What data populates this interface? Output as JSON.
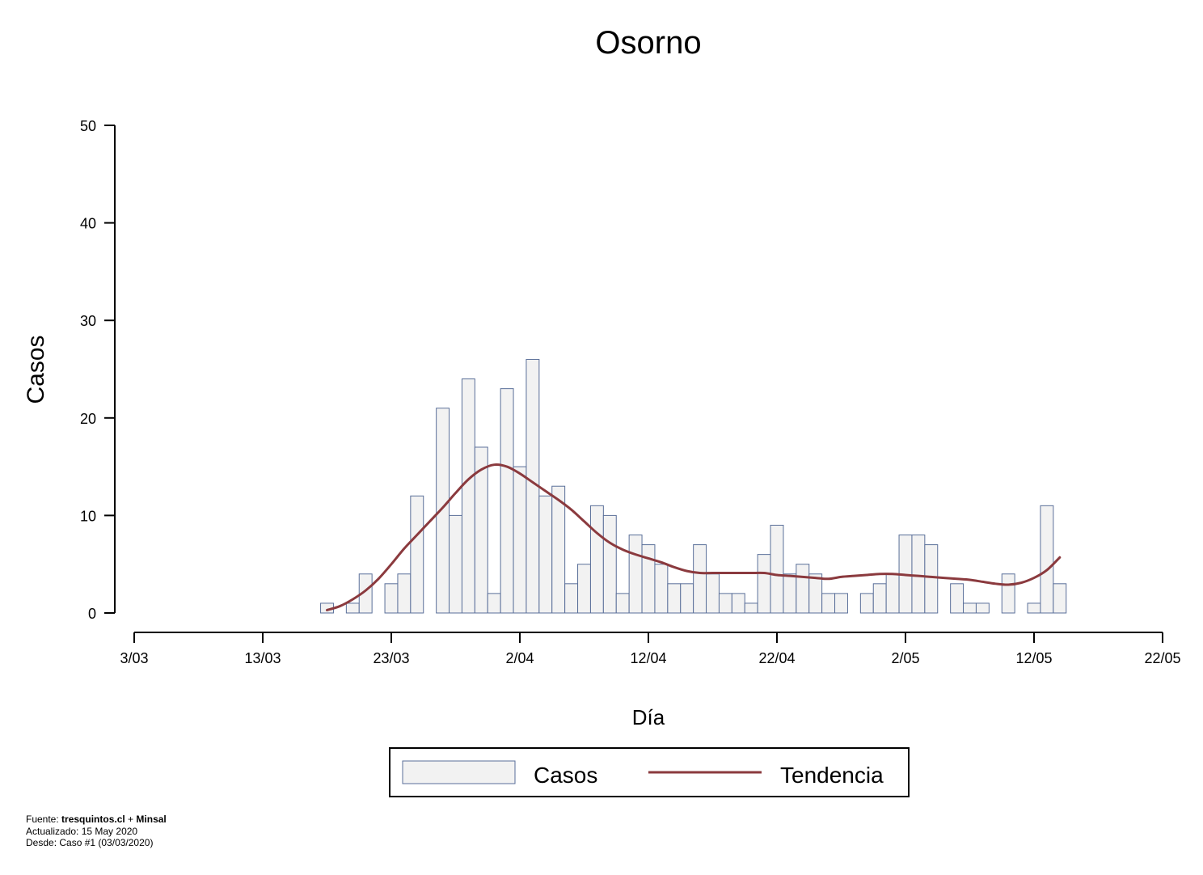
{
  "chart_data": {
    "type": "bar",
    "title": "Osorno",
    "xlabel": "Día",
    "ylabel": "Casos",
    "ylim": [
      0,
      50
    ],
    "yticks": [
      0,
      10,
      20,
      30,
      40,
      50
    ],
    "xlim": [
      "2020-03-03",
      "2020-05-22"
    ],
    "xticks": [
      {
        "date": "2020-03-03",
        "label": "3/03"
      },
      {
        "date": "2020-03-13",
        "label": "13/03"
      },
      {
        "date": "2020-03-23",
        "label": "23/03"
      },
      {
        "date": "2020-04-02",
        "label": "2/04"
      },
      {
        "date": "2020-04-12",
        "label": "12/04"
      },
      {
        "date": "2020-04-22",
        "label": "22/04"
      },
      {
        "date": "2020-05-02",
        "label": "2/05"
      },
      {
        "date": "2020-05-12",
        "label": "12/05"
      },
      {
        "date": "2020-05-22",
        "label": "22/05"
      }
    ],
    "grid": false,
    "legend_position": "bottom",
    "series": [
      {
        "name": "Casos",
        "type": "bar",
        "fill": "#f2f2f2",
        "stroke": "#5a6f99",
        "points": [
          [
            "2020-03-18",
            1
          ],
          [
            "2020-03-19",
            0
          ],
          [
            "2020-03-20",
            1
          ],
          [
            "2020-03-21",
            4
          ],
          [
            "2020-03-22",
            0
          ],
          [
            "2020-03-23",
            3
          ],
          [
            "2020-03-24",
            4
          ],
          [
            "2020-03-25",
            12
          ],
          [
            "2020-03-26",
            0
          ],
          [
            "2020-03-27",
            21
          ],
          [
            "2020-03-28",
            10
          ],
          [
            "2020-03-29",
            24
          ],
          [
            "2020-03-30",
            17
          ],
          [
            "2020-03-31",
            2
          ],
          [
            "2020-04-01",
            23
          ],
          [
            "2020-04-02",
            15
          ],
          [
            "2020-04-03",
            26
          ],
          [
            "2020-04-04",
            12
          ],
          [
            "2020-04-05",
            13
          ],
          [
            "2020-04-06",
            3
          ],
          [
            "2020-04-07",
            5
          ],
          [
            "2020-04-08",
            11
          ],
          [
            "2020-04-09",
            10
          ],
          [
            "2020-04-10",
            2
          ],
          [
            "2020-04-11",
            8
          ],
          [
            "2020-04-12",
            7
          ],
          [
            "2020-04-13",
            5
          ],
          [
            "2020-04-14",
            3
          ],
          [
            "2020-04-15",
            3
          ],
          [
            "2020-04-16",
            7
          ],
          [
            "2020-04-17",
            4
          ],
          [
            "2020-04-18",
            2
          ],
          [
            "2020-04-19",
            2
          ],
          [
            "2020-04-20",
            1
          ],
          [
            "2020-04-21",
            6
          ],
          [
            "2020-04-22",
            9
          ],
          [
            "2020-04-23",
            4
          ],
          [
            "2020-04-24",
            5
          ],
          [
            "2020-04-25",
            4
          ],
          [
            "2020-04-26",
            2
          ],
          [
            "2020-04-27",
            2
          ],
          [
            "2020-04-28",
            0
          ],
          [
            "2020-04-29",
            2
          ],
          [
            "2020-04-30",
            3
          ],
          [
            "2020-05-01",
            4
          ],
          [
            "2020-05-02",
            8
          ],
          [
            "2020-05-03",
            8
          ],
          [
            "2020-05-04",
            7
          ],
          [
            "2020-05-05",
            0
          ],
          [
            "2020-05-06",
            3
          ],
          [
            "2020-05-07",
            1
          ],
          [
            "2020-05-08",
            1
          ],
          [
            "2020-05-09",
            0
          ],
          [
            "2020-05-10",
            4
          ],
          [
            "2020-05-11",
            0
          ],
          [
            "2020-05-12",
            1
          ],
          [
            "2020-05-13",
            11
          ],
          [
            "2020-05-14",
            3
          ]
        ]
      },
      {
        "name": "Tendencia",
        "type": "line",
        "color": "#8b3a3e",
        "points": [
          [
            "2020-03-18",
            0.3
          ],
          [
            "2020-03-19",
            0.7
          ],
          [
            "2020-03-20",
            1.4
          ],
          [
            "2020-03-21",
            2.3
          ],
          [
            "2020-03-22",
            3.5
          ],
          [
            "2020-03-23",
            5.0
          ],
          [
            "2020-03-24",
            6.6
          ],
          [
            "2020-03-25",
            8.0
          ],
          [
            "2020-03-26",
            9.4
          ],
          [
            "2020-03-27",
            10.8
          ],
          [
            "2020-03-28",
            12.3
          ],
          [
            "2020-03-29",
            13.7
          ],
          [
            "2020-03-30",
            14.7
          ],
          [
            "2020-03-31",
            15.2
          ],
          [
            "2020-04-01",
            15.0
          ],
          [
            "2020-04-02",
            14.3
          ],
          [
            "2020-04-03",
            13.4
          ],
          [
            "2020-04-04",
            12.5
          ],
          [
            "2020-04-05",
            11.6
          ],
          [
            "2020-04-06",
            10.6
          ],
          [
            "2020-04-07",
            9.4
          ],
          [
            "2020-04-08",
            8.2
          ],
          [
            "2020-04-09",
            7.2
          ],
          [
            "2020-04-10",
            6.5
          ],
          [
            "2020-04-11",
            6.0
          ],
          [
            "2020-04-12",
            5.6
          ],
          [
            "2020-04-13",
            5.2
          ],
          [
            "2020-04-14",
            4.7
          ],
          [
            "2020-04-15",
            4.3
          ],
          [
            "2020-04-16",
            4.1
          ],
          [
            "2020-04-17",
            4.1
          ],
          [
            "2020-04-18",
            4.1
          ],
          [
            "2020-04-19",
            4.1
          ],
          [
            "2020-04-20",
            4.1
          ],
          [
            "2020-04-21",
            4.1
          ],
          [
            "2020-04-22",
            3.9
          ],
          [
            "2020-04-23",
            3.8
          ],
          [
            "2020-04-24",
            3.7
          ],
          [
            "2020-04-25",
            3.6
          ],
          [
            "2020-04-26",
            3.5
          ],
          [
            "2020-04-27",
            3.7
          ],
          [
            "2020-04-28",
            3.8
          ],
          [
            "2020-04-29",
            3.9
          ],
          [
            "2020-04-30",
            4.0
          ],
          [
            "2020-05-01",
            4.0
          ],
          [
            "2020-05-02",
            3.9
          ],
          [
            "2020-05-03",
            3.8
          ],
          [
            "2020-05-04",
            3.7
          ],
          [
            "2020-05-05",
            3.6
          ],
          [
            "2020-05-06",
            3.5
          ],
          [
            "2020-05-07",
            3.4
          ],
          [
            "2020-05-08",
            3.2
          ],
          [
            "2020-05-09",
            3.0
          ],
          [
            "2020-05-10",
            2.9
          ],
          [
            "2020-05-11",
            3.1
          ],
          [
            "2020-05-12",
            3.6
          ],
          [
            "2020-05-13",
            4.4
          ],
          [
            "2020-05-14",
            5.7
          ]
        ]
      }
    ]
  },
  "legend": {
    "items": [
      {
        "label": "Casos"
      },
      {
        "label": "Tendencia"
      }
    ]
  },
  "footer": {
    "fuente_prefix": "Fuente: ",
    "fuente_site": "tresquintos.cl",
    "fuente_sep": " + ",
    "fuente_org": "Minsal",
    "actualizado": "Actualizado: 15 May 2020",
    "desde": "Desde: Caso #1  (03/03/2020)"
  }
}
